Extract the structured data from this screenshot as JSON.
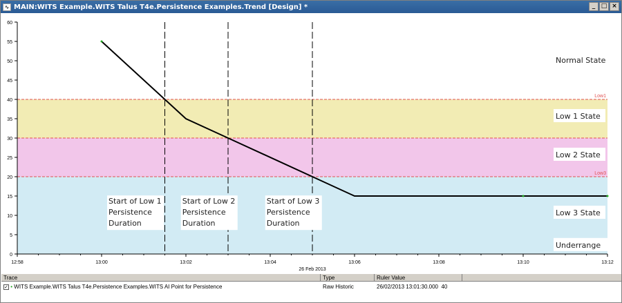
{
  "window": {
    "title": "MAIN:WITS Example.WITS Talus T4e.Persistence Examples.Trend [Design] *",
    "minimize": "_",
    "maximize": "□",
    "close": "×"
  },
  "chart_data": {
    "type": "line",
    "xlabel": "26 Feb 2013",
    "xlim": [
      "12:58",
      "13:12"
    ],
    "ylim": [
      0,
      60
    ],
    "x_ticks": [
      "12:58",
      "13:00",
      "13:02",
      "13:04",
      "13:06",
      "13:08",
      "13:10",
      "13:12"
    ],
    "y_ticks": [
      0,
      5,
      10,
      15,
      20,
      25,
      30,
      35,
      40,
      45,
      50,
      55,
      60
    ],
    "series": [
      {
        "x": [
          "13:00",
          "13:01:30",
          "13:02",
          "13:03",
          "13:05",
          "13:06",
          "13:10",
          "13:12"
        ],
        "values": [
          55,
          40,
          35,
          30,
          20,
          15,
          15,
          15
        ],
        "color": "#000000"
      }
    ],
    "markers": [
      {
        "x": "13:00",
        "y": 55
      },
      {
        "x": "13:10",
        "y": 15
      },
      {
        "x": "13:12",
        "y": 15
      }
    ],
    "bands": [
      {
        "from": 30,
        "to": 40,
        "color": "#f2ecb4",
        "label": "Low 1 State"
      },
      {
        "from": 20,
        "to": 30,
        "color": "#f2c6ea",
        "label": "Low 2 State"
      },
      {
        "from": 0,
        "to": 20,
        "color": "#d2ebf4",
        "label": "Low 3 State"
      }
    ],
    "limits": [
      {
        "value": 40,
        "label": "Low1"
      },
      {
        "value": 30,
        "label": ""
      },
      {
        "value": 20,
        "label": "Low3"
      }
    ],
    "limit_color": "#e05050",
    "state_labels": [
      {
        "text": "Normal State",
        "y": 50
      },
      {
        "text": "Underrange",
        "y": 2
      }
    ],
    "vlines": [
      "13:01:30",
      "13:03",
      "13:05"
    ],
    "annotations": [
      {
        "x": "13:00",
        "lines": [
          "Start of Low 1",
          "Persistence",
          "Duration"
        ]
      },
      {
        "x": "13:01:45",
        "lines": [
          "Start of Low 2",
          "Persistence",
          "Duration"
        ]
      },
      {
        "x": "13:03:45",
        "lines": [
          "Start of Low 3",
          "Persistence",
          "Duration"
        ]
      }
    ]
  },
  "trace_table": {
    "headers": [
      "Trace",
      "Type",
      "Ruler Value"
    ],
    "rows": [
      {
        "checked": true,
        "trace": "WITS Example.WITS Talus T4e.Persistence Examples.WITS AI Point for Persistence",
        "type": "Raw Historic",
        "ruler_time": "26/02/2013 13:01:30.000",
        "ruler_value": "40"
      }
    ]
  }
}
